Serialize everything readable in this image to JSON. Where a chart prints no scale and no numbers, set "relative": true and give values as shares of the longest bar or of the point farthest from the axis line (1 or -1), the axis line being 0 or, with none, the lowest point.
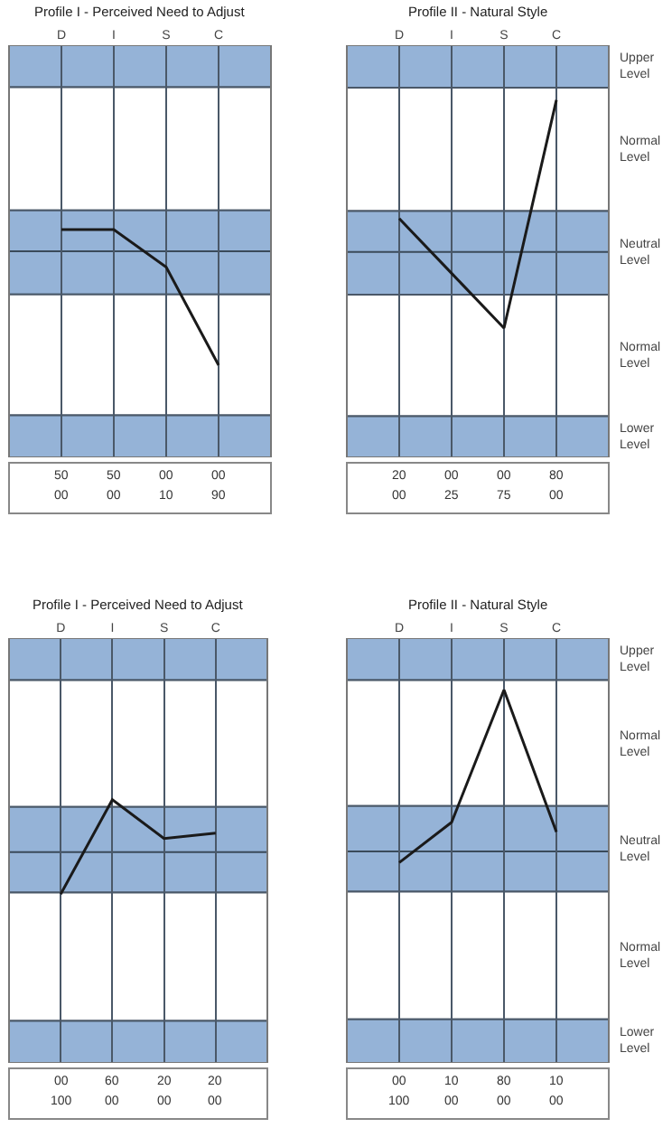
{
  "chart_data": [
    {
      "type": "line",
      "title": "Profile I - Perceived Need to Adjust",
      "categories": [
        "D",
        "I",
        "S",
        "C"
      ],
      "relative": true,
      "grid": "x",
      "marker": "none",
      "line_style": "solid",
      "series": [
        {
          "color": "#1a1a1a",
          "values": [
            0.19,
            0.19,
            -0.14,
            -1
          ]
        }
      ],
      "bands": [
        {
          "axis": "y",
          "from": 1.44,
          "to": 1.81,
          "color": "#95b3d7"
        },
        {
          "axis": "y",
          "from": 0.36,
          "to": 1.44,
          "color": "#ffffff"
        },
        {
          "axis": "y",
          "from": -0.38,
          "to": 0.36,
          "color": "#95b3d7"
        },
        {
          "axis": "y",
          "from": -1.44,
          "to": -0.38,
          "color": "#ffffff"
        },
        {
          "axis": "y",
          "from": -1.81,
          "to": -1.44,
          "color": "#95b3d7"
        }
      ],
      "ref_lines": [
        {
          "axis": "y",
          "value": 0,
          "color": "#3a4a5a"
        }
      ],
      "annotations": [
        "50",
        "50",
        "00",
        "00",
        "00",
        "00",
        "10",
        "90"
      ]
    },
    {
      "type": "line",
      "title": "Profile II - Natural Style",
      "categories": [
        "D",
        "I",
        "S",
        "C"
      ],
      "relative": true,
      "grid": "x",
      "marker": "none",
      "line_style": "solid",
      "series": [
        {
          "color": "#1a1a1a",
          "values": [
            0.22,
            -0.14,
            -0.5,
            1
          ]
        }
      ],
      "bands": [
        {
          "axis": "y",
          "from": 1.08,
          "to": 1.36,
          "color": "#95b3d7",
          "label": "Upper Level"
        },
        {
          "axis": "y",
          "from": 0.27,
          "to": 1.08,
          "color": "#ffffff",
          "label": "Normal Level"
        },
        {
          "axis": "y",
          "from": -0.28,
          "to": 0.27,
          "color": "#95b3d7",
          "label": "Neutral Level"
        },
        {
          "axis": "y",
          "from": -1.08,
          "to": -0.28,
          "color": "#ffffff",
          "label": "Normal Level"
        },
        {
          "axis": "y",
          "from": -1.35,
          "to": -1.08,
          "color": "#95b3d7",
          "label": "Lower Level"
        }
      ],
      "ref_lines": [
        {
          "axis": "y",
          "value": 0,
          "color": "#3a4a5a"
        }
      ],
      "annotations": [
        "20",
        "00",
        "00",
        "80",
        "00",
        "25",
        "75",
        "00"
      ]
    },
    {
      "type": "line",
      "title": "Profile I - Perceived Need to Adjust",
      "categories": [
        "D",
        "I",
        "S",
        "C"
      ],
      "relative": true,
      "grid": "x",
      "marker": "none",
      "line_style": "solid",
      "series": [
        {
          "color": "#1a1a1a",
          "values": [
            -0.8,
            1,
            0.26,
            0.36
          ]
        }
      ],
      "bands": [
        {
          "axis": "y",
          "from": 3.28,
          "to": 4.08,
          "color": "#95b3d7"
        },
        {
          "axis": "y",
          "from": 0.86,
          "to": 3.28,
          "color": "#ffffff"
        },
        {
          "axis": "y",
          "from": -0.77,
          "to": 0.86,
          "color": "#95b3d7"
        },
        {
          "axis": "y",
          "from": -3.22,
          "to": -0.77,
          "color": "#ffffff"
        },
        {
          "axis": "y",
          "from": -4.02,
          "to": -3.22,
          "color": "#95b3d7"
        }
      ],
      "ref_lines": [
        {
          "axis": "y",
          "value": 0,
          "color": "#3a4a5a"
        }
      ],
      "annotations": [
        "00",
        "60",
        "20",
        "20",
        "100",
        "00",
        "00",
        "00"
      ]
    },
    {
      "type": "line",
      "title": "Profile II - Natural Style",
      "categories": [
        "D",
        "I",
        "S",
        "C"
      ],
      "relative": true,
      "grid": "x",
      "marker": "none",
      "line_style": "solid",
      "series": [
        {
          "color": "#1a1a1a",
          "values": [
            -0.07,
            0.18,
            1,
            0.12
          ]
        }
      ],
      "bands": [
        {
          "axis": "y",
          "from": 1.06,
          "to": 1.32,
          "color": "#95b3d7",
          "label": "Upper Level"
        },
        {
          "axis": "y",
          "from": 0.28,
          "to": 1.06,
          "color": "#ffffff",
          "label": "Normal Level"
        },
        {
          "axis": "y",
          "from": -0.25,
          "to": 0.28,
          "color": "#95b3d7",
          "label": "Neutral Level"
        },
        {
          "axis": "y",
          "from": -1.04,
          "to": -0.25,
          "color": "#ffffff",
          "label": "Normal Level"
        },
        {
          "axis": "y",
          "from": -1.31,
          "to": -1.04,
          "color": "#95b3d7",
          "label": "Lower Level"
        }
      ],
      "ref_lines": [
        {
          "axis": "y",
          "value": 0,
          "color": "#3a4a5a"
        }
      ],
      "annotations": [
        "00",
        "10",
        "80",
        "10",
        "100",
        "00",
        "00",
        "00"
      ]
    }
  ]
}
